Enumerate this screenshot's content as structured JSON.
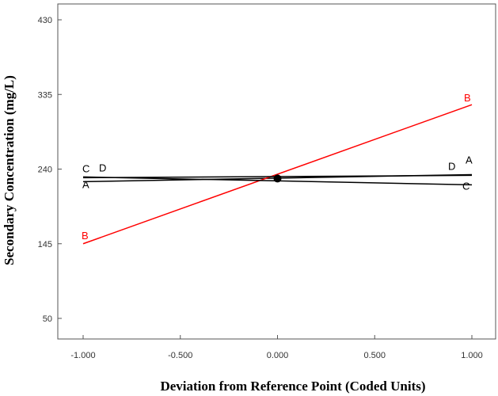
{
  "chart_data": {
    "type": "line",
    "xlabel": "Deviation from Reference Point (Coded Units)",
    "ylabel": "Secondary Concentration (mg/L)",
    "xlim": [
      -1.0,
      1.0
    ],
    "ylim": [
      0,
      455
    ],
    "x_ticks": [
      "-1.000",
      "-0.500",
      "0.000",
      "0.500",
      "1.000"
    ],
    "x_tick_values": [
      -1.0,
      -0.5,
      0.0,
      0.5,
      1.0
    ],
    "y_ticks": [
      "50",
      "145",
      "240",
      "335",
      "430"
    ],
    "y_tick_values": [
      50,
      145,
      240,
      335,
      430
    ],
    "reference_point": {
      "x": 0.0,
      "y": 228
    },
    "grid": false,
    "series": [
      {
        "name": "A",
        "color": "#000000",
        "x": [
          -1.0,
          1.0
        ],
        "y": [
          224,
          233
        ]
      },
      {
        "name": "B",
        "color": "#ff0000",
        "x": [
          -1.0,
          1.0
        ],
        "y": [
          145,
          322
        ]
      },
      {
        "name": "C",
        "color": "#000000",
        "x": [
          -1.0,
          1.0
        ],
        "y": [
          230,
          220
        ]
      },
      {
        "name": "D",
        "color": "#000000",
        "x": [
          -1.0,
          1.0
        ],
        "y": [
          229,
          232
        ]
      }
    ]
  }
}
